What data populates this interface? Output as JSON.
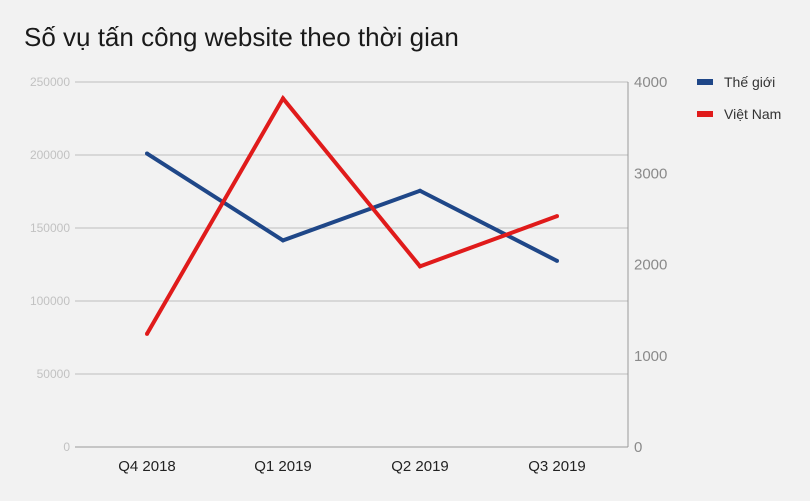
{
  "title": "Số vụ tấn công website theo thời gian",
  "colors": {
    "background": "#f2f2f2",
    "grid": "#bdbdbd",
    "series_the_gioi": "#1f4788",
    "series_viet_nam": "#e01b1b"
  },
  "chart_data": {
    "type": "line",
    "title": "Số vụ tấn công website theo thời gian",
    "categories": [
      "Q4 2018",
      "Q1 2019",
      "Q2 2019",
      "Q3 2019"
    ],
    "series": [
      {
        "name": "Thế giới",
        "axis": "left",
        "color": "#1f4788",
        "values": [
          201000,
          141500,
          175500,
          127500
        ]
      },
      {
        "name": "Việt Nam",
        "axis": "right",
        "color": "#e01b1b",
        "values": [
          1240,
          3820,
          1980,
          2530
        ]
      }
    ],
    "y_left": {
      "ylim": [
        0,
        250000
      ],
      "ticks": [
        0,
        50000,
        100000,
        150000,
        200000,
        250000
      ]
    },
    "y_right": {
      "ylim": [
        0,
        4000
      ],
      "ticks": [
        0,
        1000,
        2000,
        3000,
        4000
      ]
    },
    "xlabel": "",
    "ylabel": "",
    "grid": true,
    "legend": {
      "position": "top-right",
      "entries": [
        "Thế giới",
        "Việt Nam"
      ]
    }
  }
}
